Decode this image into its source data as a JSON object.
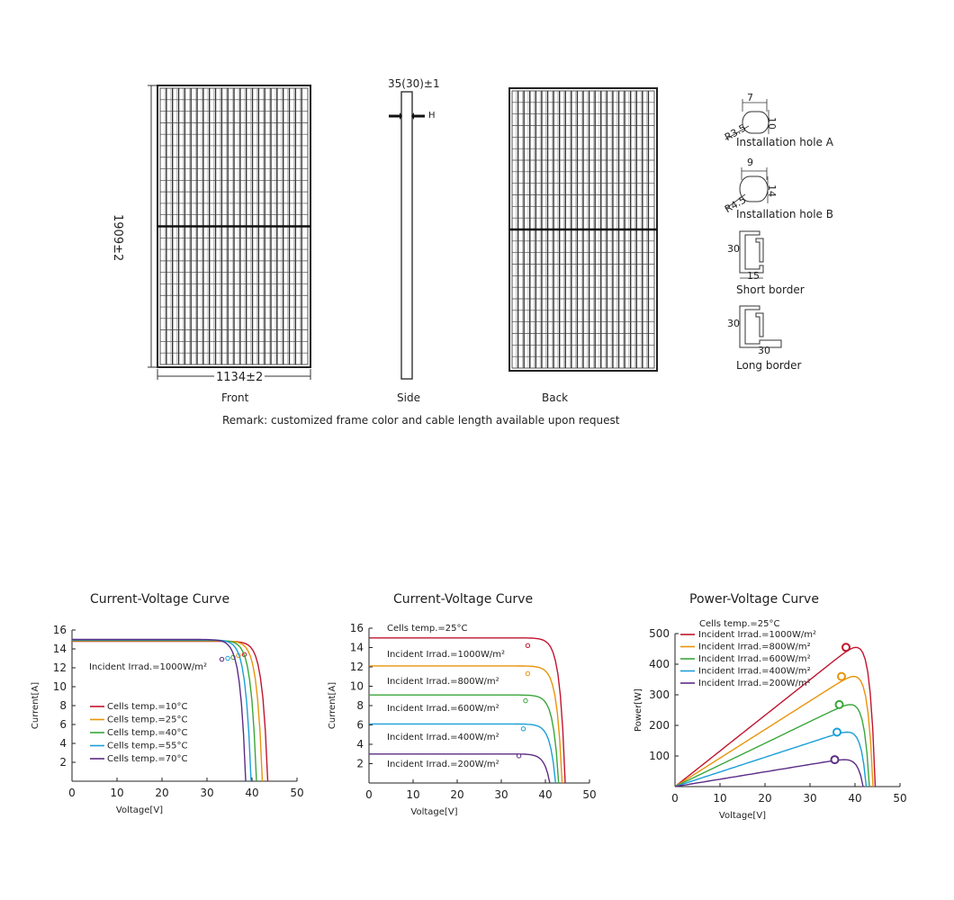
{
  "dimensions": {
    "height": "1909±2",
    "width": "1134±2",
    "thickness": "35(30)±1",
    "thickness_mark": "H"
  },
  "views": {
    "front": "Front",
    "side": "Side",
    "back": "Back"
  },
  "remark": "Remark: customized frame color and cable length available upon request",
  "details": {
    "hole_a": {
      "label": "Installation hole A",
      "width": "7",
      "height": "10",
      "radius": "R3.5"
    },
    "hole_b": {
      "label": "Installation hole B",
      "width": "9",
      "height": "14",
      "radius": "R4.5"
    },
    "short_border": {
      "label": "Short border",
      "height": "30",
      "width": "15"
    },
    "long_border": {
      "label": "Long border",
      "height": "30",
      "width": "30"
    }
  },
  "chart_data": [
    {
      "type": "line",
      "title": "Current-Voltage Curve",
      "xlabel": "Voltage[V]",
      "ylabel": "Current[A]",
      "xlim": [
        0,
        50
      ],
      "ylim": [
        0,
        16
      ],
      "xticks": [
        "0",
        "10",
        "20",
        "30",
        "40",
        "50"
      ],
      "yticks": [
        "2",
        "4",
        "6",
        "8",
        "10",
        "12",
        "14",
        "16"
      ],
      "annotation": "Incident Irrad.=1000W/m²",
      "series": [
        {
          "name": "Cells temp.=10°C",
          "color": "#c0152f",
          "isc": 14.8,
          "voc": 43.5,
          "mpp": [
            38.3,
            13.4
          ]
        },
        {
          "name": "Cells temp.=25°C",
          "color": "#e8940b",
          "isc": 14.85,
          "voc": 42.3,
          "mpp": [
            37.0,
            13.3
          ]
        },
        {
          "name": "Cells temp.=40°C",
          "color": "#3aa63a",
          "isc": 14.9,
          "voc": 41.0,
          "mpp": [
            35.8,
            13.1
          ]
        },
        {
          "name": "Cells temp.=55°C",
          "color": "#1c9fd8",
          "isc": 14.95,
          "voc": 39.8,
          "mpp": [
            34.6,
            13.0
          ]
        },
        {
          "name": "Cells temp.=70°C",
          "color": "#5b2d86",
          "isc": 15.0,
          "voc": 38.6,
          "mpp": [
            33.3,
            12.9
          ]
        }
      ]
    },
    {
      "type": "line",
      "title": "Current-Voltage Curve",
      "xlabel": "Voltage[V]",
      "ylabel": "Current[A]",
      "xlim": [
        0,
        50
      ],
      "ylim": [
        0,
        16
      ],
      "xticks": [
        "0",
        "10",
        "20",
        "30",
        "40",
        "50"
      ],
      "yticks": [
        "2",
        "4",
        "6",
        "8",
        "10",
        "12",
        "14",
        "16"
      ],
      "annotation": "Cells temp.=25°C",
      "series": [
        {
          "name": "Incident Irrad.=1000W/m²",
          "color": "#c0152f",
          "isc": 15.0,
          "voc": 44.5,
          "mpp": [
            36.0,
            14.2
          ]
        },
        {
          "name": "Incident Irrad.=800W/m²",
          "color": "#e8940b",
          "isc": 12.1,
          "voc": 43.8,
          "mpp": [
            36.0,
            11.3
          ]
        },
        {
          "name": "Incident Irrad.=600W/m²",
          "color": "#3aa63a",
          "isc": 9.1,
          "voc": 43.0,
          "mpp": [
            35.5,
            8.5
          ]
        },
        {
          "name": "Incident Irrad.=400W/m²",
          "color": "#1c9fd8",
          "isc": 6.1,
          "voc": 42.3,
          "mpp": [
            35.0,
            5.6
          ]
        },
        {
          "name": "Incident Irrad.=200W/m²",
          "color": "#5b2d86",
          "isc": 3.0,
          "voc": 41.0,
          "mpp": [
            34.0,
            2.8
          ]
        }
      ]
    },
    {
      "type": "line",
      "title": "Power-Voltage Curve",
      "xlabel": "Voltage[V]",
      "ylabel": "Power[W]",
      "xlim": [
        0,
        50
      ],
      "ylim": [
        0,
        500
      ],
      "xticks": [
        "0",
        "10",
        "20",
        "30",
        "40",
        "50"
      ],
      "yticks": [
        "100",
        "200",
        "300",
        "400",
        "500"
      ],
      "annotation": "Cells temp.=25°C",
      "series": [
        {
          "name": "Incident Irrad.=1000W/m²",
          "color": "#c0152f",
          "voc": 44.5,
          "mpp": [
            38.0,
            455
          ]
        },
        {
          "name": "Incident Irrad.=800W/m²",
          "color": "#e8940b",
          "voc": 44.0,
          "mpp": [
            37.0,
            360
          ]
        },
        {
          "name": "Incident Irrad.=600W/m²",
          "color": "#3aa63a",
          "voc": 43.2,
          "mpp": [
            36.5,
            268
          ]
        },
        {
          "name": "Incident Irrad.=400W/m²",
          "color": "#1c9fd8",
          "voc": 42.5,
          "mpp": [
            36.0,
            178
          ]
        },
        {
          "name": "Incident Irrad.=200W/m²",
          "color": "#5b2d86",
          "voc": 41.8,
          "mpp": [
            35.5,
            88
          ]
        }
      ]
    }
  ]
}
